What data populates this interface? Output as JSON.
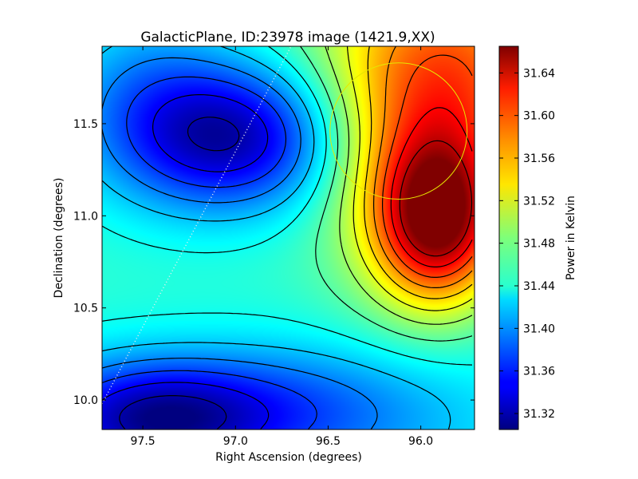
{
  "chart_data": {
    "type": "heatmap",
    "title": "GalacticPlane, ID:23978 image (1421.9,XX)",
    "xlabel": "Right Ascension (degrees)",
    "ylabel": "Declination (degrees)",
    "colorbar_label": "Power in Kelvin",
    "xlim": [
      97.72,
      95.71
    ],
    "ylim": [
      9.84,
      11.92
    ],
    "x_inverted": true,
    "xticks": [
      97.5,
      97.0,
      96.5,
      96.0
    ],
    "xtick_labels": [
      "97.5",
      "97.0",
      "96.5",
      "96.0"
    ],
    "yticks": [
      10.0,
      10.5,
      11.0,
      11.5
    ],
    "ytick_labels": [
      "10.0",
      "10.5",
      "11.0",
      "11.5"
    ],
    "colorbar_range": [
      31.305,
      31.665
    ],
    "colorbar_ticks": [
      31.32,
      31.36,
      31.4,
      31.44,
      31.48,
      31.52,
      31.56,
      31.6,
      31.64
    ],
    "colorbar_tick_labels": [
      "31.32",
      "31.36",
      "31.40",
      "31.44",
      "31.48",
      "31.52",
      "31.56",
      "31.60",
      "31.64"
    ],
    "colormap": "jet",
    "contour_lines": true,
    "grid": false,
    "field": {
      "base": 31.46,
      "components": [
        {
          "kind": "peak",
          "ra": 95.9,
          "dec": 10.98,
          "amp": 0.2,
          "sra": 0.24,
          "sdec": 0.32
        },
        {
          "kind": "peak",
          "ra": 95.75,
          "dec": 11.75,
          "amp": 0.1,
          "sra": 0.35,
          "sdec": 0.4
        },
        {
          "kind": "peak",
          "ra": 96.2,
          "dec": 11.5,
          "amp": 0.06,
          "sra": 0.3,
          "sdec": 0.6
        },
        {
          "kind": "trough",
          "ra": 97.0,
          "dec": 11.42,
          "amp": 0.13,
          "sra": 0.42,
          "sdec": 0.28
        },
        {
          "kind": "trough",
          "ra": 97.5,
          "dec": 11.7,
          "amp": 0.06,
          "sra": 0.4,
          "sdec": 0.4
        },
        {
          "kind": "trough",
          "ra": 97.45,
          "dec": 9.9,
          "amp": 0.12,
          "sra": 0.45,
          "sdec": 0.22
        },
        {
          "kind": "trough",
          "ra": 96.6,
          "dec": 9.95,
          "amp": 0.06,
          "sra": 0.6,
          "sdec": 0.25
        }
      ]
    },
    "overlays": [
      {
        "kind": "circle",
        "ra": 96.12,
        "dec": 11.46,
        "radius_deg": 0.37,
        "color": "#e6e600"
      },
      {
        "kind": "dotted-line",
        "from": [
          97.72,
          9.98
        ],
        "to": [
          96.7,
          11.92
        ],
        "color": "#eeeeee"
      }
    ]
  }
}
